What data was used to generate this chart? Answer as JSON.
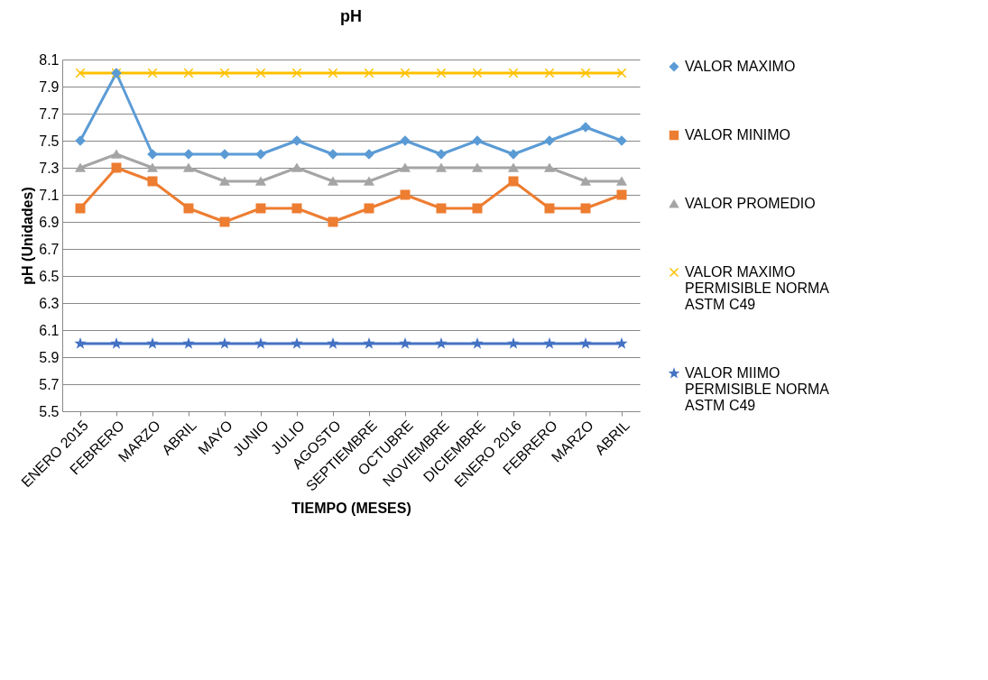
{
  "chart_data": {
    "type": "line",
    "title": "pH",
    "xlabel": "TIEMPO (MESES)",
    "ylabel": "pH (Unidades)",
    "categories": [
      "ENERO 2015",
      "FEBRERO",
      "MARZO",
      "ABRIL",
      "MAYO",
      "JUNIO",
      "JULIO",
      "AGOSTO",
      "SEPTIEMBRE",
      "OCTUBRE",
      "NOVIEMBRE",
      "DICIEMBRE",
      "ENERO 2016",
      "FEBRERO",
      "MARZO",
      "ABRIL"
    ],
    "ylim": [
      5.5,
      8.1
    ],
    "yticks": [
      5.5,
      5.7,
      5.9,
      6.1,
      6.3,
      6.5,
      6.7,
      6.9,
      7.1,
      7.3,
      7.5,
      7.7,
      7.9,
      8.1
    ],
    "grid": "y",
    "legend": "right",
    "series": [
      {
        "name": "VALOR MAXIMO",
        "color": "#5b9bd5",
        "marker": "diamond",
        "values": [
          7.5,
          8.0,
          7.4,
          7.4,
          7.4,
          7.4,
          7.5,
          7.4,
          7.4,
          7.5,
          7.4,
          7.5,
          7.4,
          7.5,
          7.6,
          7.5
        ]
      },
      {
        "name": "VALOR MINIMO",
        "color": "#ed7d31",
        "marker": "square",
        "values": [
          7.0,
          7.3,
          7.2,
          7.0,
          6.9,
          7.0,
          7.0,
          6.9,
          7.0,
          7.1,
          7.0,
          7.0,
          7.2,
          7.0,
          7.0,
          7.1
        ]
      },
      {
        "name": "VALOR PROMEDIO",
        "color": "#a5a5a5",
        "marker": "triangle",
        "values": [
          7.3,
          7.4,
          7.3,
          7.3,
          7.2,
          7.2,
          7.3,
          7.2,
          7.2,
          7.3,
          7.3,
          7.3,
          7.3,
          7.3,
          7.2,
          7.2
        ]
      },
      {
        "name": "VALOR MAXIMO PERMISIBLE NORMA ASTM C49",
        "color": "#ffc000",
        "marker": "cross",
        "values": [
          8.0,
          8.0,
          8.0,
          8.0,
          8.0,
          8.0,
          8.0,
          8.0,
          8.0,
          8.0,
          8.0,
          8.0,
          8.0,
          8.0,
          8.0,
          8.0
        ]
      },
      {
        "name": "VALOR MIIMO PERMISIBLE NORMA ASTM C49",
        "color": "#4472c4",
        "marker": "star",
        "values": [
          6.0,
          6.0,
          6.0,
          6.0,
          6.0,
          6.0,
          6.0,
          6.0,
          6.0,
          6.0,
          6.0,
          6.0,
          6.0,
          6.0,
          6.0,
          6.0
        ]
      }
    ]
  }
}
